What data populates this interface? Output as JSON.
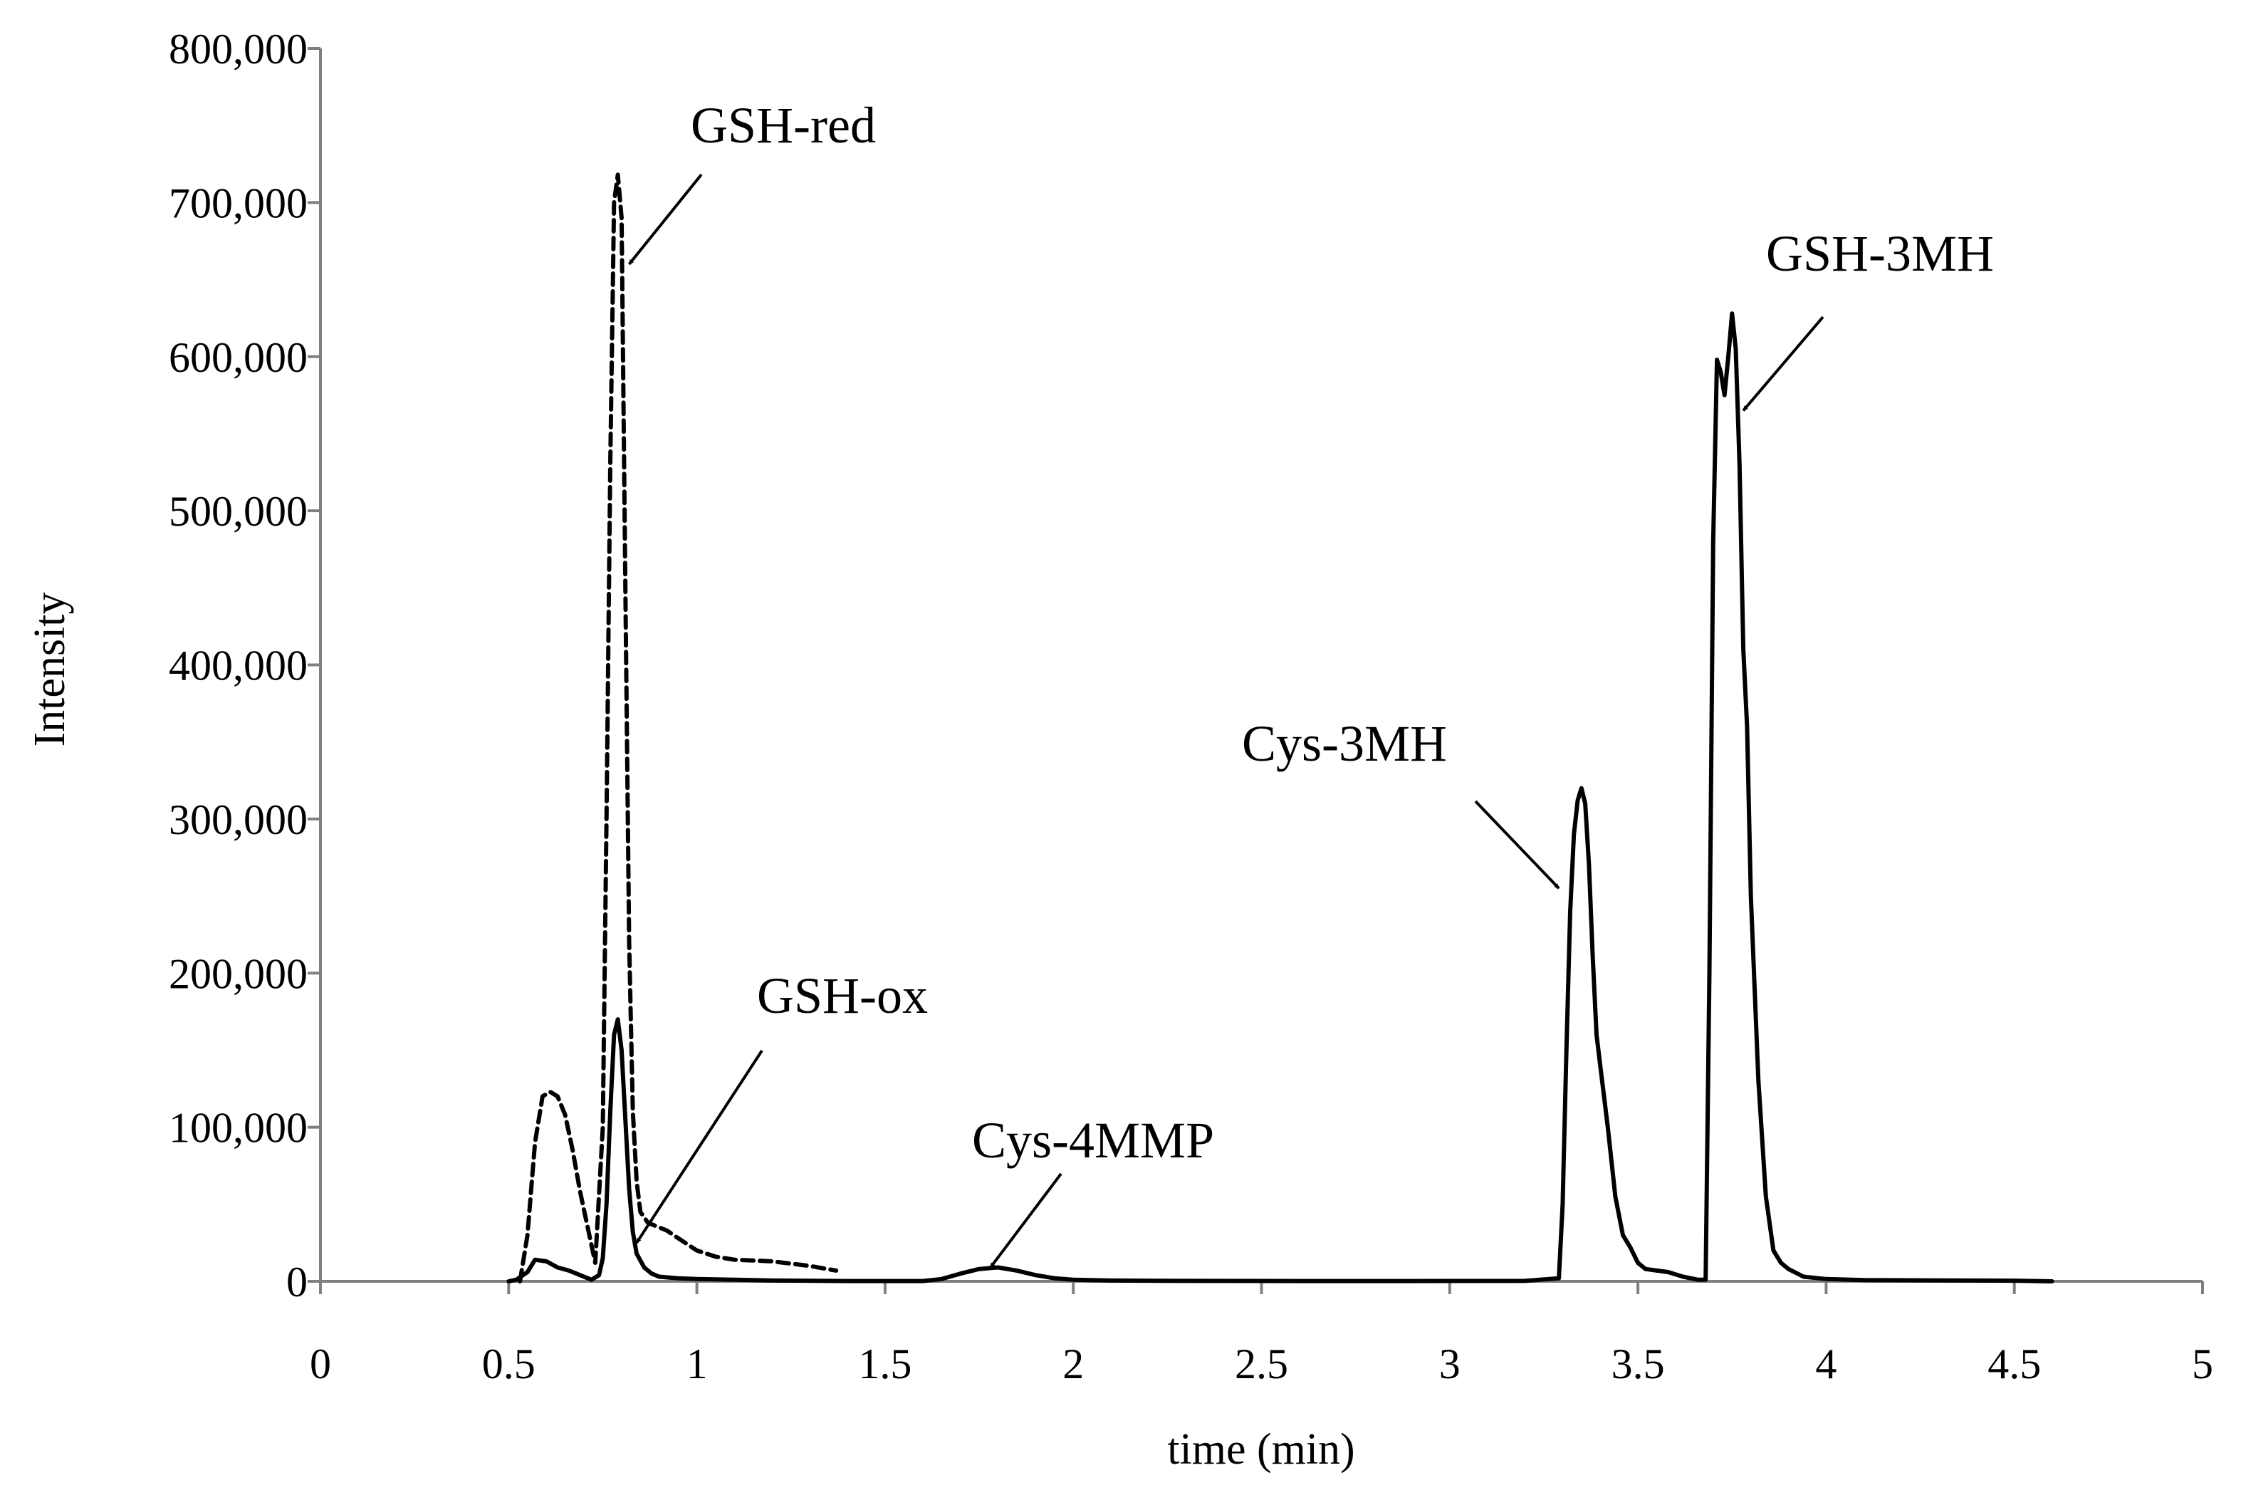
{
  "chart_data": {
    "type": "line",
    "title": "",
    "xlabel": "time (min)",
    "ylabel": "Intensity",
    "xlim": [
      0,
      5
    ],
    "ylim": [
      0,
      800000
    ],
    "xticks": [
      0,
      0.5,
      1,
      1.5,
      2,
      2.5,
      3,
      3.5,
      4,
      4.5,
      5
    ],
    "xtick_labels": [
      "0",
      "0.5",
      "1",
      "1.5",
      "2",
      "2.5",
      "3",
      "3.5",
      "4",
      "4.5",
      "5"
    ],
    "yticks": [
      0,
      100000,
      200000,
      300000,
      400000,
      500000,
      600000,
      700000,
      800000
    ],
    "ytick_labels": [
      "0",
      "100,000",
      "200,000",
      "300,000",
      "400,000",
      "500,000",
      "600,000",
      "700,000",
      "800,000"
    ],
    "grid": false,
    "series": [
      {
        "name": "solid trace",
        "style": "solid",
        "color": "#000000",
        "x": [
          0.5,
          0.52,
          0.55,
          0.57,
          0.6,
          0.63,
          0.66,
          0.69,
          0.72,
          0.74,
          0.75,
          0.76,
          0.77,
          0.78,
          0.79,
          0.8,
          0.81,
          0.82,
          0.83,
          0.84,
          0.86,
          0.88,
          0.9,
          0.95,
          1.0,
          1.1,
          1.2,
          1.4,
          1.6,
          1.65,
          1.7,
          1.75,
          1.8,
          1.85,
          1.9,
          1.95,
          2.0,
          2.1,
          2.3,
          2.6,
          2.9,
          3.2,
          3.29,
          3.3,
          3.31,
          3.32,
          3.33,
          3.34,
          3.35,
          3.36,
          3.37,
          3.38,
          3.39,
          3.4,
          3.42,
          3.44,
          3.46,
          3.48,
          3.5,
          3.52,
          3.55,
          3.58,
          3.62,
          3.66,
          3.68,
          3.69,
          3.7,
          3.71,
          3.72,
          3.73,
          3.74,
          3.75,
          3.76,
          3.77,
          3.78,
          3.79,
          3.8,
          3.82,
          3.84,
          3.86,
          3.88,
          3.9,
          3.94,
          4.0,
          4.1,
          4.3,
          4.5,
          4.6
        ],
        "y": [
          0,
          1000,
          6000,
          14000,
          13000,
          9000,
          7000,
          4000,
          1000,
          4000,
          15000,
          50000,
          110000,
          160000,
          170000,
          150000,
          105000,
          60000,
          32000,
          18000,
          9000,
          5000,
          3000,
          2000,
          1500,
          1000,
          500,
          200,
          200,
          1500,
          5000,
          8000,
          9000,
          7000,
          4000,
          2000,
          1000,
          500,
          300,
          200,
          200,
          300,
          2000,
          50000,
          150000,
          240000,
          290000,
          312000,
          320000,
          310000,
          270000,
          210000,
          160000,
          140000,
          100000,
          55000,
          30000,
          22000,
          12000,
          8000,
          7000,
          6000,
          3000,
          1000,
          1000,
          200000,
          480000,
          598000,
          590000,
          575000,
          600000,
          628000,
          605000,
          530000,
          410000,
          360000,
          250000,
          130000,
          55000,
          20000,
          12000,
          8000,
          3000,
          1500,
          800,
          600,
          400,
          0
        ]
      },
      {
        "name": "dashed trace",
        "style": "dashed",
        "color": "#000000",
        "x": [
          0.53,
          0.55,
          0.57,
          0.59,
          0.61,
          0.63,
          0.65,
          0.67,
          0.69,
          0.71,
          0.73,
          0.75,
          0.76,
          0.77,
          0.78,
          0.79,
          0.8,
          0.81,
          0.82,
          0.83,
          0.84,
          0.85,
          0.87,
          0.9,
          0.92,
          0.95,
          1.0,
          1.05,
          1.1,
          1.2,
          1.3,
          1.37
        ],
        "y": [
          0,
          30000,
          90000,
          120000,
          123000,
          120000,
          108000,
          85000,
          58000,
          35000,
          12000,
          100000,
          300000,
          530000,
          700000,
          718000,
          690000,
          450000,
          220000,
          110000,
          65000,
          45000,
          38000,
          35000,
          33000,
          28000,
          20000,
          16000,
          14000,
          13000,
          10000,
          7000
        ]
      }
    ],
    "annotations": [
      {
        "text": "GSH-red",
        "points_to": {
          "x": 0.82,
          "y": 660000
        }
      },
      {
        "text": "GSH-ox",
        "points_to": {
          "x": 0.84,
          "y": 25000
        }
      },
      {
        "text": "Cys-4MMP",
        "points_to": {
          "x": 1.78,
          "y": 9000
        }
      },
      {
        "text": "Cys-3MH",
        "points_to": {
          "x": 3.29,
          "y": 255000
        }
      },
      {
        "text": "GSH-3MH",
        "points_to": {
          "x": 3.78,
          "y": 565000
        }
      }
    ]
  }
}
